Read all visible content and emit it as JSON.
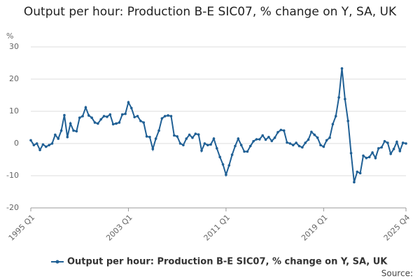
{
  "chart_data": {
    "type": "line",
    "title": "Output per hour: Production B-E SIC07, % change on Y, SA, UK",
    "y_label": "%",
    "source": "Source:",
    "categories": [
      "1995 Q1",
      null,
      null,
      null,
      null,
      null,
      null,
      null,
      null,
      null,
      null,
      null,
      null,
      null,
      null,
      null,
      null,
      null,
      null,
      null,
      null,
      null,
      null,
      null,
      null,
      null,
      null,
      null,
      null,
      null,
      null,
      null,
      "2003 Q1",
      null,
      null,
      null,
      null,
      null,
      null,
      null,
      null,
      null,
      null,
      null,
      null,
      null,
      null,
      null,
      null,
      null,
      null,
      null,
      null,
      null,
      null,
      null,
      null,
      null,
      null,
      null,
      null,
      null,
      null,
      null,
      "2011 Q1",
      null,
      null,
      null,
      null,
      null,
      null,
      null,
      null,
      null,
      null,
      null,
      null,
      null,
      null,
      null,
      null,
      null,
      null,
      null,
      null,
      null,
      null,
      null,
      null,
      null,
      null,
      null,
      null,
      null,
      null,
      null,
      "2019 Q1",
      null,
      null,
      null,
      null,
      null,
      null,
      null,
      null,
      null,
      null,
      null,
      null,
      null,
      null,
      null,
      null,
      null,
      null,
      null,
      null,
      null,
      null,
      null,
      null,
      null,
      null,
      "2025 Q4"
    ],
    "series": [
      {
        "name": "Output per hour: Production B-E SIC07, % change on Y, SA, UK",
        "color": "#206095",
        "values": [
          1,
          -0.5,
          0,
          -2,
          -0.3,
          -1,
          -0.5,
          0,
          2.7,
          1.5,
          4,
          8.8,
          2,
          6.2,
          4,
          3.8,
          8,
          8.5,
          11.2,
          8.7,
          8,
          6.5,
          6.2,
          7.5,
          8.5,
          8.3,
          9,
          6,
          6.2,
          6.5,
          9,
          9.2,
          12.8,
          11,
          8.2,
          8.5,
          7,
          6.5,
          2.2,
          2,
          -1.7,
          1.5,
          4,
          7.8,
          8.5,
          8.7,
          8.5,
          2.5,
          2.2,
          0,
          -0.5,
          1.5,
          2.7,
          1.8,
          3,
          2.8,
          -2.2,
          0,
          -0.5,
          -0.3,
          1.5,
          -1.5,
          -4.2,
          -6.5,
          -9.7,
          -6.8,
          -3.5,
          -0.8,
          1.5,
          -0.5,
          -2.5,
          -2.5,
          -0.8,
          0.7,
          1.3,
          1.3,
          2.5,
          1.2,
          2,
          0.8,
          1.8,
          3.5,
          4.2,
          4,
          0.3,
          0,
          -0.5,
          0.2,
          -0.8,
          -1.2,
          0.2,
          1.2,
          3.6,
          2.7,
          1.8,
          -0.5,
          -1,
          1,
          1.8,
          6,
          8.5,
          14.3,
          23.3,
          13.8,
          7,
          -3,
          -12,
          -8.8,
          -9.2,
          -3.8,
          -4.5,
          -4.2,
          -2.8,
          -4.5,
          -1.5,
          -1.2,
          0.7,
          0.2,
          -3.2,
          -1.7,
          0.5,
          -2.3,
          0.2,
          0
        ]
      }
    ],
    "ylim": [
      -20,
      30
    ],
    "yticks": [
      -20,
      -10,
      0,
      10,
      20,
      30
    ],
    "grid": true
  }
}
